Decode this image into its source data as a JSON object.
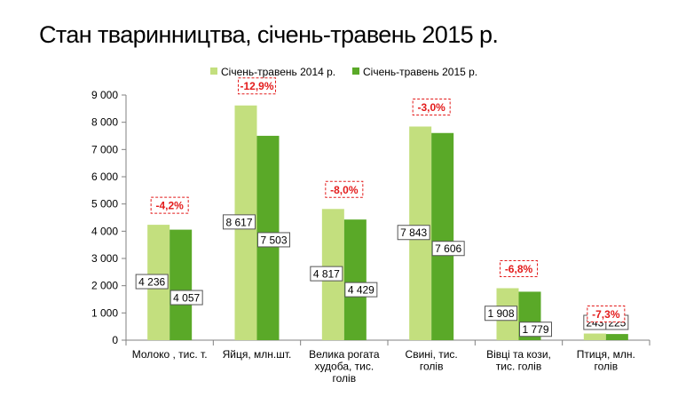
{
  "slide": {
    "title": "Стан тваринництва, січень-травень 2015 р."
  },
  "chart_data": {
    "type": "bar",
    "title": "",
    "xlabel": "",
    "ylabel": "",
    "ylim": [
      0,
      9000
    ],
    "yticks": [
      0,
      1000,
      2000,
      3000,
      4000,
      5000,
      6000,
      7000,
      8000,
      9000
    ],
    "ytick_labels": [
      "0",
      "1 000",
      "2 000",
      "3 000",
      "4 000",
      "5 000",
      "6 000",
      "7 000",
      "8 000",
      "9 000"
    ],
    "grid": false,
    "legend_position": "top",
    "categories": [
      [
        "Молоко , тис. т."
      ],
      [
        "Яйця, млн.шт."
      ],
      [
        "Велика рогата",
        "худоба, тис.",
        "голів"
      ],
      [
        "Свині, тис.",
        "голів"
      ],
      [
        "Вівці та кози,",
        "тис. голів"
      ],
      [
        "Птиця, млн.",
        "голів"
      ]
    ],
    "series": [
      {
        "name": "Січень-травень 2014 р.",
        "color": "#c3df7e",
        "values": [
          4236,
          8617,
          4817,
          7843,
          1908,
          243
        ],
        "labels": [
          "4 236",
          "8 617",
          "4 817",
          "7 843",
          "1 908",
          "243"
        ]
      },
      {
        "name": "Січень-травень 2015 р.",
        "color": "#5aa928",
        "values": [
          4057,
          7503,
          4429,
          7606,
          1779,
          225
        ],
        "labels": [
          "4 057",
          "7 503",
          "4 429",
          "7 606",
          "1 779",
          "225"
        ]
      }
    ],
    "changes": [
      "-4,2%",
      "-12,9%",
      "-8,0%",
      "-3,0%",
      "-6,8%",
      "-7,3%"
    ],
    "colors": {
      "change_text": "#e31b1b",
      "change_border": "#e31b1b",
      "axis": "#808080"
    }
  }
}
